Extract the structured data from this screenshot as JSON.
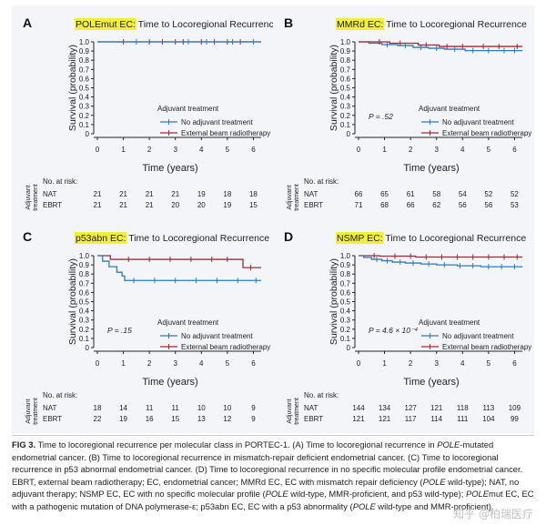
{
  "colors": {
    "nat": "#2f7bb6",
    "ebrt": "#9b2b3a",
    "highlight": "#f2ef3c",
    "axis": "#222222"
  },
  "labels": {
    "y_axis": "Survival (probability)",
    "x_axis": "Time (years)",
    "legend_title": "Adjuvant treatment",
    "legend_nat": "No adjuvant treatment",
    "legend_ebrt": "External beam radiotherapy",
    "no_at_risk": "No. at risk:",
    "side_label_1": "Adjuvant",
    "side_label_2": "treatment",
    "row_nat": "NAT",
    "row_ebrt": "EBRT"
  },
  "chart_data": [
    {
      "letter": "A",
      "type": "line",
      "title_highlight": "POLEmut EC:",
      "title_rest": " Time to Locoregional Recurrence",
      "p_value": "",
      "xlim": [
        0,
        6.3
      ],
      "ylim": [
        0,
        1
      ],
      "xticks": [
        "0",
        "1",
        "2",
        "3",
        "4",
        "5",
        "6"
      ],
      "yticks": [
        "0",
        "0.1",
        "0.2",
        "0.3",
        "0.4",
        "0.5",
        "0.6",
        "0.7",
        "0.8",
        "0.9",
        "1.0"
      ],
      "series": [
        {
          "name": "EBRT",
          "steps": [
            [
              0,
              1
            ],
            [
              6.3,
              1
            ]
          ],
          "censors": [
            1,
            2,
            2.5,
            3,
            3.3,
            4,
            4.5,
            5,
            5.5
          ]
        },
        {
          "name": "NAT",
          "steps": [
            [
              0,
              1
            ],
            [
              6.3,
              1
            ]
          ],
          "censors": [
            1.5,
            3.5,
            4.2,
            5.2,
            6
          ]
        }
      ],
      "at_risk": {
        "times": [
          0,
          1,
          2,
          3,
          4,
          5,
          6
        ],
        "NAT": [
          21,
          21,
          21,
          21,
          19,
          18,
          18
        ],
        "EBRT": [
          21,
          21,
          21,
          20,
          20,
          19,
          15
        ]
      }
    },
    {
      "letter": "B",
      "type": "line",
      "title_highlight": "MMRd EC:",
      "title_rest": " Time to Locoregional Recurrence",
      "p_value": "P = .52",
      "xlim": [
        0,
        6.3
      ],
      "ylim": [
        0,
        1
      ],
      "xticks": [
        "0",
        "1",
        "2",
        "3",
        "4",
        "5",
        "6"
      ],
      "yticks": [
        "0",
        "0.1",
        "0.2",
        "0.3",
        "0.4",
        "0.5",
        "0.6",
        "0.7",
        "0.8",
        "0.9",
        "1.0"
      ],
      "series": [
        {
          "name": "NAT",
          "steps": [
            [
              0,
              1
            ],
            [
              0.4,
              0.985
            ],
            [
              0.9,
              0.97
            ],
            [
              1.5,
              0.96
            ],
            [
              2.1,
              0.94
            ],
            [
              2.7,
              0.93
            ],
            [
              3.3,
              0.92
            ],
            [
              4.1,
              0.905
            ],
            [
              6.3,
              0.905
            ]
          ],
          "censors": [
            1.1,
            1.8,
            2.4,
            3.0,
            3.7,
            4.4,
            5.0,
            5.6,
            6.0
          ]
        },
        {
          "name": "EBRT",
          "steps": [
            [
              0,
              1
            ],
            [
              1.2,
              0.985
            ],
            [
              2.3,
              0.965
            ],
            [
              3.1,
              0.95
            ],
            [
              6.3,
              0.95
            ]
          ],
          "censors": [
            0.8,
            1.6,
            2.6,
            3.4,
            4.0,
            4.8,
            5.4,
            6.1
          ]
        }
      ],
      "at_risk": {
        "times": [
          0,
          1,
          2,
          3,
          4,
          5,
          6
        ],
        "NAT": [
          66,
          65,
          61,
          58,
          54,
          52,
          52
        ],
        "EBRT": [
          71,
          68,
          66,
          62,
          56,
          56,
          53
        ]
      }
    },
    {
      "letter": "C",
      "type": "line",
      "title_highlight": "p53abn EC:",
      "title_rest": " Time to Locoregional Recurrence",
      "p_value": "P = .15",
      "xlim": [
        0,
        6.3
      ],
      "ylim": [
        0,
        1
      ],
      "xticks": [
        "0",
        "1",
        "2",
        "3",
        "4",
        "5",
        "6"
      ],
      "yticks": [
        "0",
        "0.1",
        "0.2",
        "0.3",
        "0.4",
        "0.5",
        "0.6",
        "0.7",
        "0.8",
        "0.9",
        "1.0"
      ],
      "series": [
        {
          "name": "EBRT",
          "steps": [
            [
              0,
              1
            ],
            [
              0.5,
              0.96
            ],
            [
              5.6,
              0.96
            ],
            [
              5.6,
              0.87
            ],
            [
              6.3,
              0.87
            ]
          ],
          "censors": [
            1.2,
            2.0,
            2.8,
            3.6,
            4.4,
            5.0,
            5.9
          ]
        },
        {
          "name": "NAT",
          "steps": [
            [
              0,
              1
            ],
            [
              0.2,
              0.94
            ],
            [
              0.45,
              0.88
            ],
            [
              0.75,
              0.82
            ],
            [
              0.95,
              0.78
            ],
            [
              1.05,
              0.73
            ],
            [
              6.3,
              0.73
            ]
          ],
          "censors": [
            1.4,
            2.2,
            3.0,
            3.8,
            4.6,
            5.4,
            6.1
          ]
        }
      ],
      "at_risk": {
        "times": [
          0,
          1,
          2,
          3,
          4,
          5,
          6
        ],
        "NAT": [
          18,
          14,
          11,
          11,
          10,
          10,
          9
        ],
        "EBRT": [
          22,
          19,
          16,
          15,
          13,
          12,
          9
        ]
      }
    },
    {
      "letter": "D",
      "type": "line",
      "title_highlight": "NSMP EC:",
      "title_rest": " Time to Locoregional Recurrence",
      "p_value": "P = 4.6 × 10⁻⁴",
      "xlim": [
        0,
        6.3
      ],
      "ylim": [
        0,
        1
      ],
      "xticks": [
        "0",
        "1",
        "2",
        "3",
        "4",
        "5",
        "6"
      ],
      "yticks": [
        "0",
        "0.1",
        "0.2",
        "0.3",
        "0.4",
        "0.5",
        "0.6",
        "0.7",
        "0.8",
        "0.9",
        "1.0"
      ],
      "series": [
        {
          "name": "EBRT",
          "steps": [
            [
              0,
              1
            ],
            [
              0.8,
              0.995
            ],
            [
              2.2,
              0.985
            ],
            [
              6.3,
              0.985
            ]
          ],
          "censors": [
            0.6,
            1.4,
            2.0,
            2.6,
            3.2,
            3.8,
            4.4,
            5.0,
            5.6,
            6.1
          ]
        },
        {
          "name": "NAT",
          "steps": [
            [
              0,
              1
            ],
            [
              0.2,
              0.98
            ],
            [
              0.5,
              0.96
            ],
            [
              0.9,
              0.945
            ],
            [
              1.3,
              0.93
            ],
            [
              1.8,
              0.92
            ],
            [
              2.4,
              0.91
            ],
            [
              3.0,
              0.9
            ],
            [
              3.8,
              0.89
            ],
            [
              4.7,
              0.88
            ],
            [
              6.3,
              0.88
            ]
          ],
          "censors": [
            0.7,
            1.1,
            1.6,
            2.1,
            2.7,
            3.3,
            3.9,
            4.4,
            5.0,
            5.5,
            6.0
          ]
        }
      ],
      "at_risk": {
        "times": [
          0,
          1,
          2,
          3,
          4,
          5,
          6
        ],
        "NAT": [
          144,
          134,
          127,
          121,
          118,
          113,
          109
        ],
        "EBRT": [
          121,
          121,
          117,
          114,
          111,
          104,
          99
        ]
      }
    }
  ],
  "caption": {
    "label": "FIG 3.",
    "segments": [
      {
        "text": "Time to locoregional recurrence per molecular class in PORTEC-1. (A) Time to locoregional recurrence in ",
        "italic": false
      },
      {
        "text": "POLE",
        "italic": true
      },
      {
        "text": "-mutated endometrial cancer. (B) Time to locoregional recurrence in mismatch-repair deficient endometrial cancer. (C) Time to locoregional recurrence in p53 abnormal endometrial cancer. (D) Time to locoregional recurrence in no specific molecular profile endometrial cancer. EBRT, external beam radiotherapy; EC, endometrial cancer; MMRd EC, EC with mismatch repair deficiency (",
        "italic": false
      },
      {
        "text": "POLE",
        "italic": true
      },
      {
        "text": " wild-type); NAT, no adjuvant therapy; NSMP EC, EC with no specific molecular profile (",
        "italic": false
      },
      {
        "text": "POLE",
        "italic": true
      },
      {
        "text": " wild-type, MMR-proficient, and p53 wild-type); ",
        "italic": false
      },
      {
        "text": "POLE",
        "italic": true
      },
      {
        "text": "mut EC, EC with a pathogenic mutation of DNA polymerase-ε; p53abn EC, EC with a p53 abnormality (",
        "italic": false
      },
      {
        "text": "POLE",
        "italic": true
      },
      {
        "text": " wild-type and MMR-proficient).",
        "italic": false
      }
    ]
  },
  "watermark": "知乎 @柏瑞医疗"
}
